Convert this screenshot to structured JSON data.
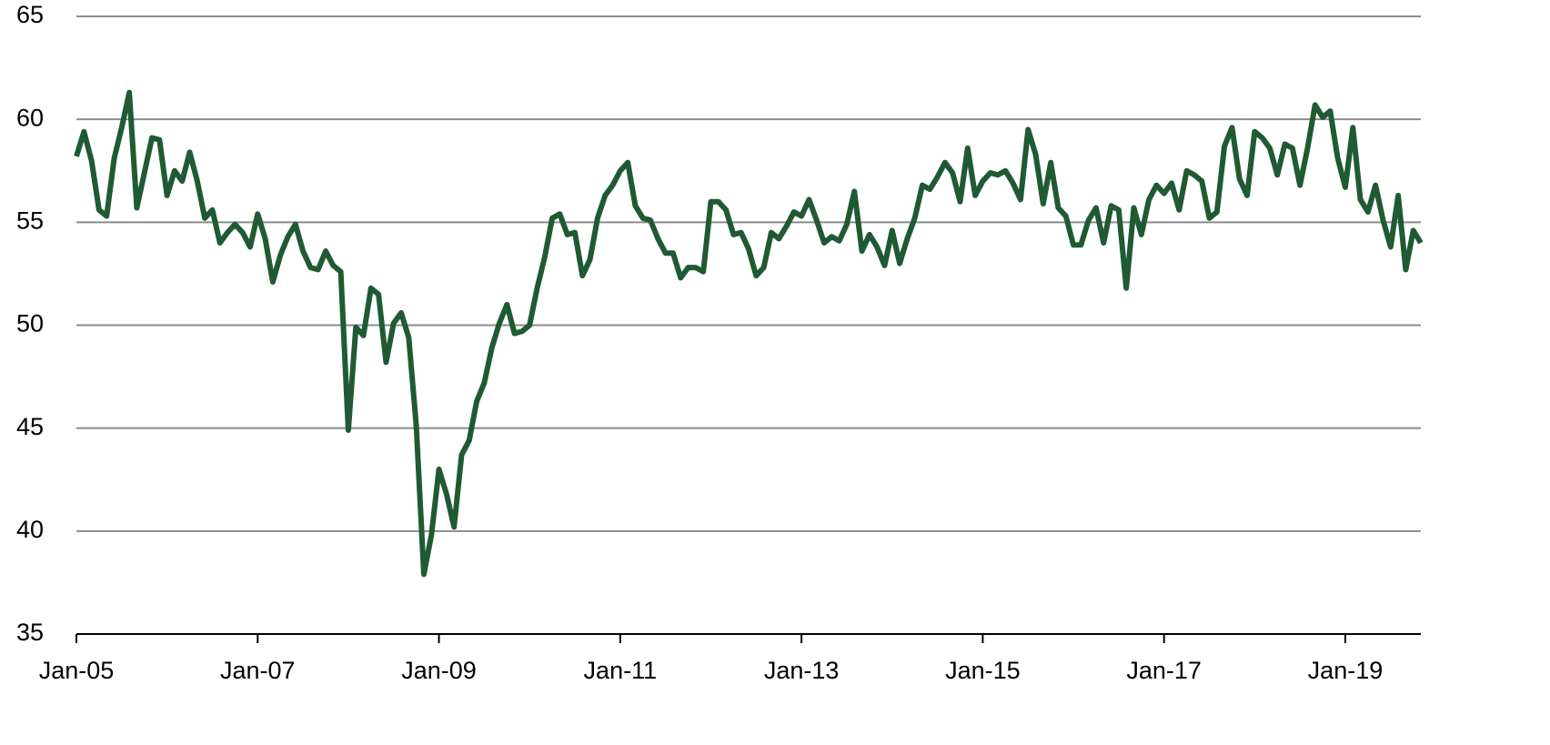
{
  "chart_data": {
    "type": "line",
    "categories": [
      "Jan-05",
      null,
      null,
      null,
      null,
      null,
      null,
      null,
      null,
      null,
      null,
      null,
      null,
      null,
      null,
      null,
      null,
      null,
      null,
      null,
      null,
      null,
      null,
      null,
      "Jan-07",
      null,
      null,
      null,
      null,
      null,
      null,
      null,
      null,
      null,
      null,
      null,
      null,
      null,
      null,
      null,
      null,
      null,
      null,
      null,
      null,
      null,
      null,
      null,
      "Jan-09",
      null,
      null,
      null,
      null,
      null,
      null,
      null,
      null,
      null,
      null,
      null,
      null,
      null,
      null,
      null,
      null,
      null,
      null,
      null,
      null,
      null,
      null,
      null,
      "Jan-11",
      null,
      null,
      null,
      null,
      null,
      null,
      null,
      null,
      null,
      null,
      null,
      null,
      null,
      null,
      null,
      null,
      null,
      null,
      null,
      null,
      null,
      null,
      null,
      "Jan-13",
      null,
      null,
      null,
      null,
      null,
      null,
      null,
      null,
      null,
      null,
      null,
      null,
      null,
      null,
      null,
      null,
      null,
      null,
      null,
      null,
      null,
      null,
      null,
      "Jan-15",
      null,
      null,
      null,
      null,
      null,
      null,
      null,
      null,
      null,
      null,
      null,
      null,
      null,
      null,
      null,
      null,
      null,
      null,
      null,
      null,
      null,
      null,
      null,
      "Jan-17",
      null,
      null,
      null,
      null,
      null,
      null,
      null,
      null,
      null,
      null,
      null,
      null,
      null,
      null,
      null,
      null,
      null,
      null,
      null,
      null,
      null,
      null,
      null,
      "Jan-19",
      null,
      null,
      null,
      null,
      null,
      null,
      null,
      null,
      null,
      null
    ],
    "series": [
      {
        "color": "#1f5a33",
        "values": [
          58.2,
          59.4,
          58,
          55.6,
          55.3,
          58.1,
          59.6,
          61.3,
          55.7,
          57.4,
          59.1,
          59,
          56.3,
          57.5,
          57,
          58.4,
          57,
          55.2,
          55.6,
          54,
          54.5,
          54.9,
          54.5,
          53.8,
          55.4,
          54.2,
          52.1,
          53.4,
          54.3,
          54.9,
          53.6,
          52.8,
          52.7,
          53.6,
          52.9,
          52.6,
          44.9,
          49.9,
          49.5,
          51.8,
          51.5,
          48.2,
          50.1,
          50.6,
          49.4,
          45.1,
          37.9,
          39.8,
          43,
          41.8,
          40.2,
          43.7,
          44.4,
          46.3,
          47.2,
          48.9,
          50.1,
          51,
          49.6,
          49.7,
          50,
          51.8,
          53.3,
          55.2,
          55.4,
          54.4,
          54.5,
          52.4,
          53.2,
          55.2,
          56.3,
          56.8,
          57.5,
          57.9,
          55.8,
          55.2,
          55.1,
          54.2,
          53.5,
          53.5,
          52.3,
          52.8,
          52.8,
          52.6,
          56,
          56,
          55.6,
          54.4,
          54.5,
          53.7,
          52.4,
          52.8,
          54.5,
          54.2,
          54.8,
          55.5,
          55.3,
          56.1,
          55.1,
          54,
          54.3,
          54.1,
          54.9,
          56.5,
          53.6,
          54.4,
          53.8,
          52.9,
          54.6,
          53,
          54.2,
          55.2,
          56.8,
          56.6,
          57.2,
          57.9,
          57.4,
          56,
          58.6,
          56.3,
          57,
          57.4,
          57.3,
          57.5,
          56.9,
          56.1,
          59.5,
          58.3,
          55.9,
          57.9,
          55.7,
          55.3,
          53.9,
          53.9,
          55.1,
          55.7,
          54,
          55.8,
          55.6,
          51.8,
          55.7,
          54.4,
          56.1,
          56.8,
          56.4,
          56.9,
          55.6,
          57.5,
          57.3,
          57,
          55.2,
          55.5,
          58.7,
          59.6,
          57.1,
          56.3,
          59.4,
          59.1,
          58.6,
          57.3,
          58.8,
          58.6,
          56.8,
          58.6,
          60.7,
          60.1,
          60.4,
          58.1,
          56.7,
          59.6,
          56.1,
          55.5,
          56.8,
          55.1,
          53.8,
          56.3,
          52.7,
          54.6,
          54
        ]
      }
    ],
    "ylim": [
      35,
      65
    ],
    "yticks": [
      35,
      40,
      45,
      50,
      55,
      60,
      65
    ],
    "grid": true
  }
}
